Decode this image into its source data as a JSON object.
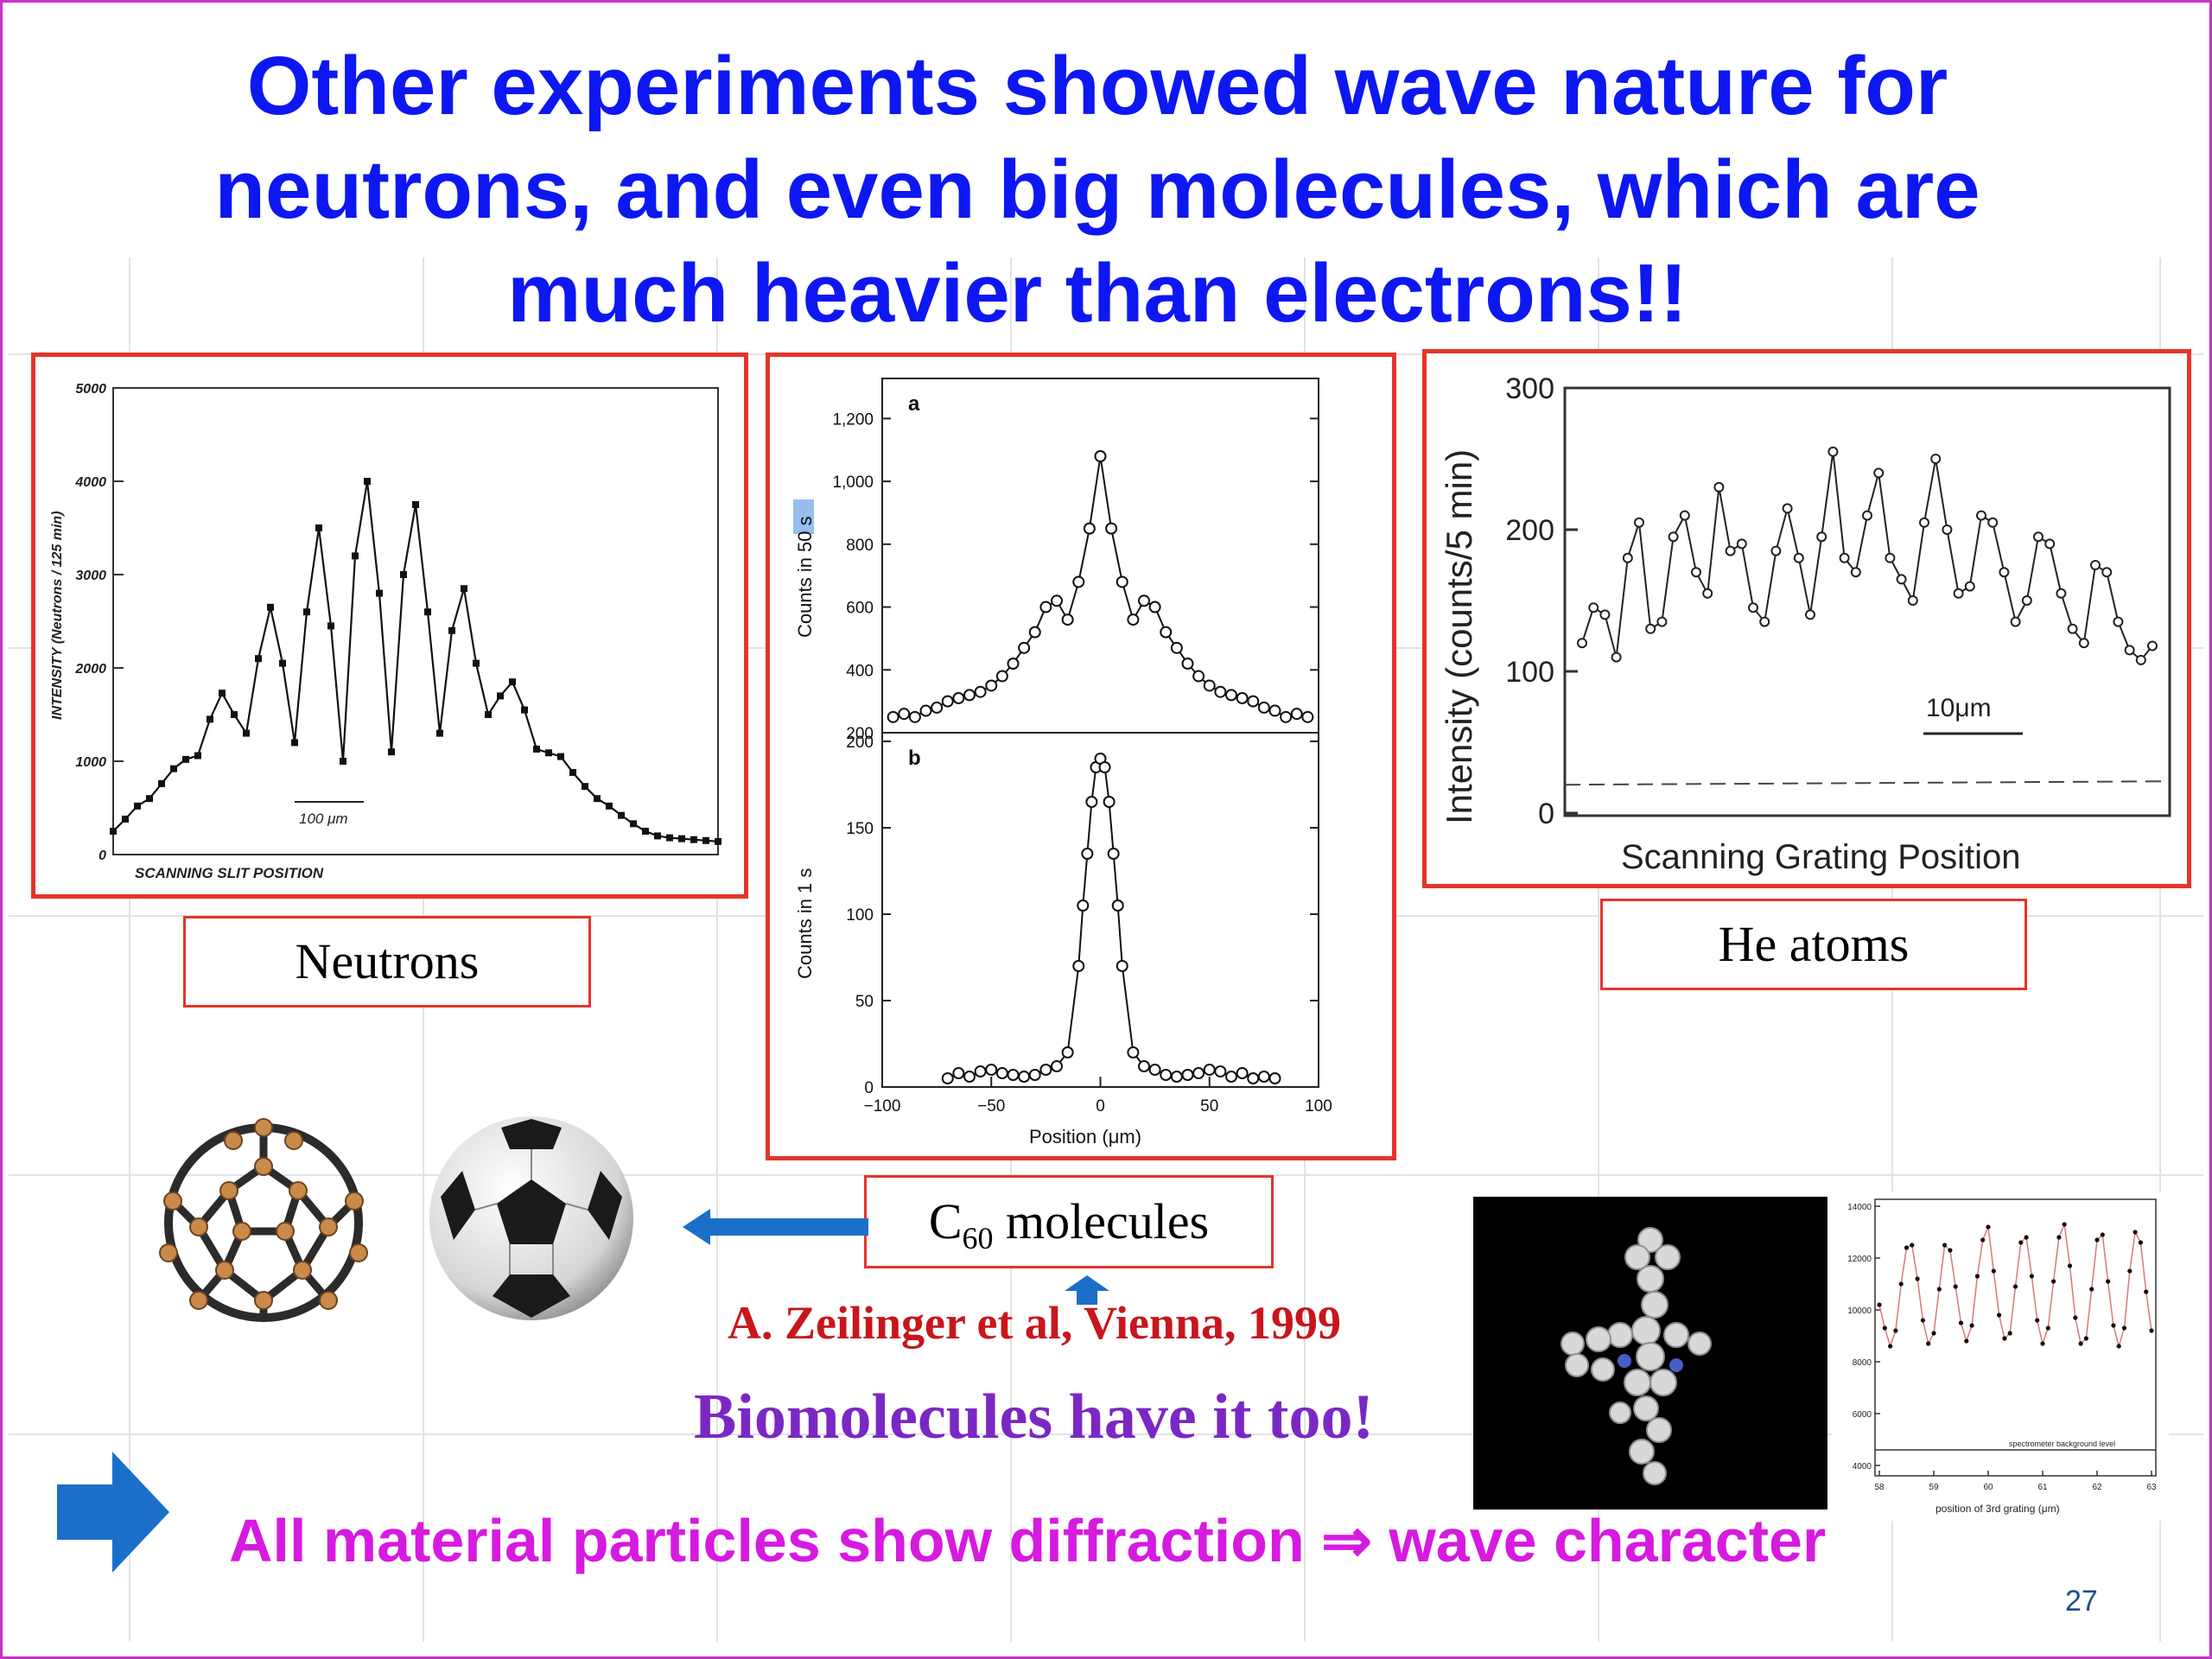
{
  "slide": {
    "title_lines": [
      "Other experiments showed wave nature for",
      "neutrons, and even big molecules, which are",
      "much heavier than electrons!!"
    ],
    "page_number": "27",
    "colors": {
      "title": "#0d17f2",
      "frame": "#c833c8",
      "panel_border": "#e5342b",
      "credit": "#c8161c",
      "bio": "#7a28c4",
      "conclusion": "#d61ae0",
      "arrow": "#1a6fc9"
    }
  },
  "neutron_panel": {
    "caption": "Neutrons",
    "chart_data": {
      "type": "line",
      "ylabel": "INTENSITY (Neutrons / 125 min)",
      "xlabel": "SCANNING SLIT POSITION",
      "y_ticks": [
        "0",
        "1000",
        "2000",
        "3000",
        "4000",
        "5000"
      ],
      "ylim": [
        0,
        5000
      ],
      "scale_bar": "100 μm",
      "x": [
        0,
        2,
        4,
        6,
        8,
        10,
        12,
        14,
        16,
        18,
        20,
        22,
        24,
        26,
        28,
        30,
        32,
        34,
        36,
        38,
        40,
        42,
        44,
        46,
        48,
        50,
        52,
        54,
        56,
        58,
        60,
        62,
        64,
        66,
        68,
        70,
        72,
        74,
        76,
        78,
        80,
        82,
        84,
        86,
        88,
        90,
        92,
        94,
        96,
        98,
        100
      ],
      "values": [
        250,
        380,
        520,
        600,
        760,
        920,
        1020,
        1060,
        1450,
        1730,
        1500,
        1300,
        2100,
        2650,
        2050,
        1200,
        2600,
        3500,
        2450,
        1000,
        3200,
        4000,
        2800,
        1100,
        3000,
        3750,
        2600,
        1300,
        2400,
        2850,
        2050,
        1500,
        1700,
        1850,
        1550,
        1130,
        1090,
        1050,
        880,
        730,
        600,
        520,
        420,
        330,
        250,
        200,
        180,
        170,
        160,
        150,
        140
      ]
    }
  },
  "c60_panel": {
    "caption_main": "C",
    "caption_sub": "60",
    "caption_tail": " molecules",
    "credit": "A. Zeilinger et al, Vienna, 1999",
    "chart_data": [
      {
        "type": "scatter",
        "panel_label": "a",
        "ylabel": "Counts in 50 s",
        "y_ticks": [
          "200",
          "400",
          "600",
          "800",
          "1,000",
          "1,200"
        ],
        "ylim": [
          200,
          1300
        ],
        "xlim": [
          -100,
          100
        ],
        "x": [
          -95,
          -90,
          -85,
          -80,
          -75,
          -70,
          -65,
          -60,
          -55,
          -50,
          -45,
          -40,
          -35,
          -30,
          -25,
          -20,
          -15,
          -10,
          -5,
          0,
          5,
          10,
          15,
          20,
          25,
          30,
          35,
          40,
          45,
          50,
          55,
          60,
          65,
          70,
          75,
          80,
          85,
          90,
          95
        ],
        "values": [
          250,
          260,
          250,
          270,
          280,
          300,
          310,
          320,
          330,
          350,
          380,
          420,
          470,
          520,
          600,
          620,
          560,
          680,
          850,
          1080,
          850,
          680,
          560,
          620,
          600,
          520,
          470,
          420,
          380,
          350,
          330,
          320,
          310,
          300,
          280,
          270,
          250,
          260,
          250
        ]
      },
      {
        "type": "scatter",
        "panel_label": "b",
        "ylabel": "Counts in 1 s",
        "xlabel": "Position (μm)",
        "y_ticks": [
          "0",
          "50",
          "100",
          "150",
          "200"
        ],
        "x_ticks": [
          "−100",
          "−50",
          "0",
          "50",
          "100"
        ],
        "ylim": [
          0,
          200
        ],
        "xlim": [
          -100,
          100
        ],
        "x": [
          -70,
          -65,
          -60,
          -55,
          -50,
          -45,
          -40,
          -35,
          -30,
          -25,
          -20,
          -15,
          -10,
          -8,
          -6,
          -4,
          -2,
          0,
          2,
          4,
          6,
          8,
          10,
          15,
          20,
          25,
          30,
          35,
          40,
          45,
          50,
          55,
          60,
          65,
          70,
          75,
          80
        ],
        "values": [
          5,
          8,
          6,
          9,
          10,
          8,
          7,
          6,
          7,
          10,
          12,
          20,
          70,
          105,
          135,
          165,
          185,
          190,
          185,
          165,
          135,
          105,
          70,
          20,
          12,
          10,
          7,
          6,
          7,
          8,
          10,
          9,
          6,
          8,
          5,
          6,
          5
        ]
      }
    ]
  },
  "he_panel": {
    "caption": "He atoms",
    "chart_data": {
      "type": "line",
      "ylabel": "Intensity (counts/5 min)",
      "xlabel": "Scanning Grating Position",
      "y_ticks": [
        "0",
        "100",
        "200",
        "300"
      ],
      "ylim": [
        0,
        300
      ],
      "background_level": 20,
      "scale_bar": "10μm",
      "x": [
        0,
        2,
        4,
        6,
        8,
        10,
        12,
        14,
        16,
        18,
        20,
        22,
        24,
        26,
        28,
        30,
        32,
        34,
        36,
        38,
        40,
        42,
        44,
        46,
        48,
        50,
        52,
        54,
        56,
        58,
        60,
        62,
        64,
        66,
        68,
        70,
        72,
        74,
        76,
        78,
        80,
        82,
        84,
        86,
        88,
        90,
        92,
        94,
        96,
        98,
        100
      ],
      "values": [
        120,
        145,
        140,
        110,
        180,
        205,
        130,
        135,
        195,
        210,
        170,
        155,
        230,
        185,
        190,
        145,
        135,
        185,
        215,
        180,
        140,
        195,
        255,
        180,
        170,
        210,
        240,
        180,
        165,
        150,
        205,
        250,
        200,
        155,
        160,
        210,
        205,
        170,
        135,
        150,
        195,
        190,
        155,
        130,
        120,
        175,
        170,
        135,
        115,
        108,
        118
      ]
    }
  },
  "biomolecule_panel": {
    "bio_text": "Biomolecules have it too!",
    "chart_data": {
      "type": "scatter",
      "y_ticks": [
        "4000",
        "6000",
        "8000",
        "10000",
        "12000",
        "14000"
      ],
      "x_ticks": [
        "58",
        "59",
        "60",
        "61",
        "62",
        "63"
      ],
      "ylim": [
        4000,
        14000
      ],
      "xlim": [
        58,
        63
      ],
      "xlabel": "position of 3rd grating (μm)",
      "background_label": "spectrometer background level",
      "background_level": 4600,
      "x": [
        58.0,
        58.1,
        58.2,
        58.3,
        58.4,
        58.5,
        58.6,
        58.7,
        58.8,
        58.9,
        59.0,
        59.1,
        59.2,
        59.3,
        59.4,
        59.5,
        59.6,
        59.7,
        59.8,
        59.9,
        60.0,
        60.1,
        60.2,
        60.3,
        60.4,
        60.5,
        60.6,
        60.7,
        60.8,
        60.9,
        61.0,
        61.1,
        61.2,
        61.3,
        61.4,
        61.5,
        61.6,
        61.7,
        61.8,
        61.9,
        62.0,
        62.1,
        62.2,
        62.3,
        62.4,
        62.5,
        62.6,
        62.7,
        62.8,
        62.9,
        63.0
      ],
      "values": [
        10200,
        9300,
        8600,
        9200,
        11000,
        12400,
        12500,
        11200,
        9600,
        8700,
        9100,
        10800,
        12500,
        12300,
        10900,
        9500,
        8800,
        9400,
        11300,
        12700,
        13200,
        11500,
        9800,
        8900,
        9100,
        10900,
        12600,
        12800,
        11300,
        9600,
        8700,
        9300,
        11100,
        12800,
        13300,
        11700,
        9700,
        8700,
        8900,
        10800,
        12700,
        12900,
        11100,
        9400,
        8600,
        9300,
        11500,
        13000,
        12600,
        10700,
        9200
      ]
    }
  },
  "conclusion": {
    "text": "All material particles show diffraction ⇒ wave character"
  }
}
